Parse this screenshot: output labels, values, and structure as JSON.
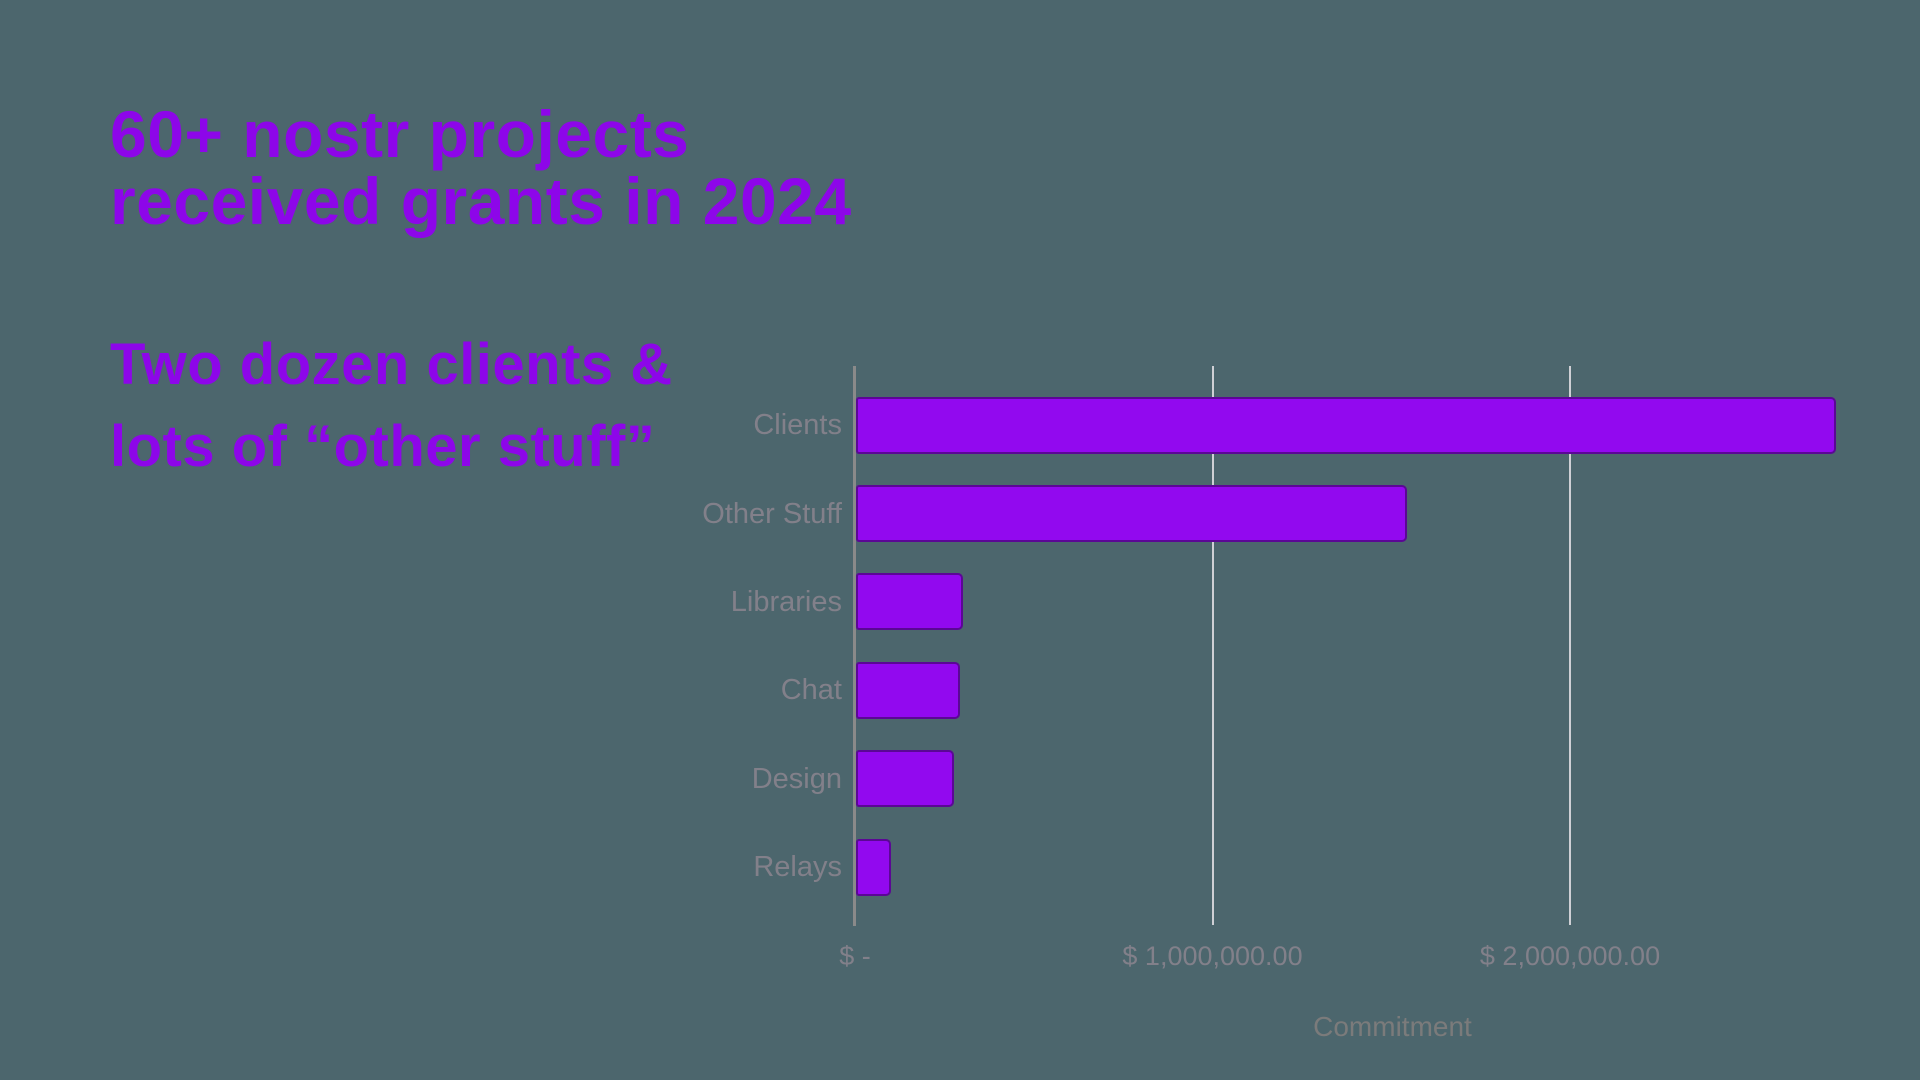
{
  "page": {
    "background_color": "#4C666D"
  },
  "headline": {
    "line1": "60+ nostr projects",
    "line2": "received grants in 2024",
    "color": "#8D06E9"
  },
  "subheadline": {
    "line1": "Two dozen clients &",
    "line2": "lots of “other stuff”",
    "color": "#8D06E9"
  },
  "chart_data": {
    "type": "bar",
    "orientation": "horizontal",
    "title": "",
    "categories": [
      "Clients",
      "Other Stuff",
      "Libraries",
      "Chat",
      "Design",
      "Relays"
    ],
    "values": [
      2740000,
      1540000,
      300000,
      292000,
      274000,
      98000
    ],
    "xlabel": "Commitment",
    "ylabel": "",
    "xlim": [
      0,
      2980000
    ],
    "xticks": [
      {
        "value": 0,
        "label": "$ -"
      },
      {
        "value": 1000000,
        "label": "$ 1,000,000.00"
      },
      {
        "value": 2000000,
        "label": "$ 2,000,000.00"
      }
    ],
    "grid": "vertical",
    "legend": false,
    "colors": {
      "bar": "#9209EF",
      "gridline": "#D6D6DB",
      "axis_line": "#8A8A8A",
      "category_label": "#82808A",
      "tick_label": "#82808A",
      "axis_title": "#7B7B7B"
    }
  }
}
